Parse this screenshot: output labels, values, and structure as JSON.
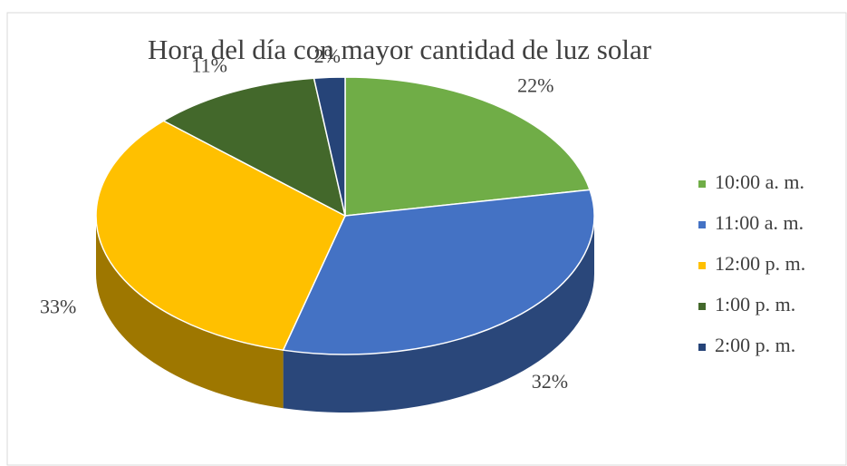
{
  "chart_data": {
    "type": "pie3d",
    "title": "Hora del día con mayor cantidad de luz solar",
    "categories": [
      "10:00 a. m.",
      "11:00 a. m.",
      "12:00 p. m.",
      "1:00 p. m.",
      "2:00 p. m."
    ],
    "values": [
      22,
      32,
      33,
      11,
      2
    ],
    "value_labels": [
      "22%",
      "32%",
      "33%",
      "11%",
      "2%"
    ],
    "colors": [
      "#70ad47",
      "#4472c4",
      "#ffc000",
      "#43682b",
      "#264478"
    ],
    "legend": "right"
  }
}
